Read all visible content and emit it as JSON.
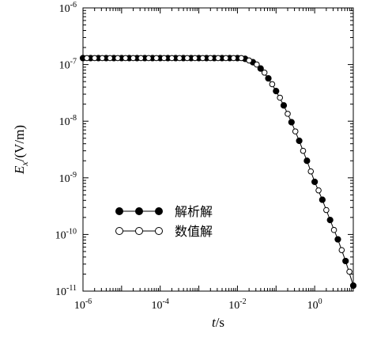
{
  "chart_data": {
    "type": "scatter",
    "x_scale": "log",
    "y_scale": "log",
    "xlim": [
      1e-06,
      10
    ],
    "ylim": [
      1e-11,
      1e-06
    ],
    "x_ticks": [
      {
        "value": 1e-06,
        "base": "10",
        "exp": "-6"
      },
      {
        "value": 0.0001,
        "base": "10",
        "exp": "-4"
      },
      {
        "value": 0.01,
        "base": "10",
        "exp": "-2"
      },
      {
        "value": 1,
        "base": "10",
        "exp": "0"
      }
    ],
    "y_ticks": [
      {
        "value": 1e-06,
        "base": "10",
        "exp": "-6"
      },
      {
        "value": 1e-07,
        "base": "10",
        "exp": "-7"
      },
      {
        "value": 1e-08,
        "base": "10",
        "exp": "-8"
      },
      {
        "value": 1e-09,
        "base": "10",
        "exp": "-9"
      },
      {
        "value": 1e-10,
        "base": "10",
        "exp": "-10"
      },
      {
        "value": 1e-11,
        "base": "10",
        "exp": "-11"
      }
    ],
    "xlabel": {
      "italic": "t",
      "rest": "/s"
    },
    "ylabel": {
      "italic": "E",
      "sub": "x",
      "rest": "/(V/m)"
    },
    "legend_position": "center-left",
    "series": [
      {
        "name": "解析解",
        "marker": "filled-circle",
        "color": "#000000",
        "x": [
          1e-06,
          1.58e-06,
          2.51e-06,
          3.98e-06,
          6.31e-06,
          1e-05,
          1.58e-05,
          2.51e-05,
          3.98e-05,
          6.31e-05,
          0.0001,
          0.000158,
          0.000251,
          0.000398,
          0.000631,
          0.001,
          0.00158,
          0.00251,
          0.00398,
          0.00631,
          0.01,
          0.0158,
          0.0251,
          0.0398,
          0.0631,
          0.1,
          0.158,
          0.251,
          0.398,
          0.631,
          1,
          1.58,
          2.51,
          3.98,
          6.31,
          10
        ],
        "y": [
          1.3e-07,
          1.3e-07,
          1.3e-07,
          1.3e-07,
          1.3e-07,
          1.3e-07,
          1.3e-07,
          1.3e-07,
          1.3e-07,
          1.3e-07,
          1.3e-07,
          1.3e-07,
          1.3e-07,
          1.3e-07,
          1.3e-07,
          1.3e-07,
          1.3e-07,
          1.3e-07,
          1.3e-07,
          1.3e-07,
          1.3e-07,
          1.26e-07,
          1.1e-07,
          8.5e-08,
          5.7e-08,
          3.4e-08,
          1.9e-08,
          9.6e-09,
          4.5e-09,
          2e-09,
          8.5e-10,
          4.1e-10,
          1.8e-10,
          8.2e-11,
          3.4e-11,
          1.25e-11
        ]
      },
      {
        "name": "数值解",
        "marker": "open-circle",
        "color": "#000000",
        "x": [
          1.26e-06,
          2e-06,
          3.16e-06,
          5.01e-06,
          7.94e-06,
          1.26e-05,
          2e-05,
          3.16e-05,
          5.01e-05,
          7.94e-05,
          0.000126,
          0.0002,
          0.000316,
          0.000501,
          0.000794,
          0.00126,
          0.002,
          0.00316,
          0.00501,
          0.00794,
          0.0126,
          0.02,
          0.0316,
          0.0501,
          0.0794,
          0.126,
          0.2,
          0.316,
          0.501,
          0.794,
          1.26,
          2,
          3.16,
          5.01,
          7.94
        ],
        "y": [
          1.3e-07,
          1.3e-07,
          1.3e-07,
          1.3e-07,
          1.3e-07,
          1.3e-07,
          1.3e-07,
          1.3e-07,
          1.3e-07,
          1.3e-07,
          1.3e-07,
          1.3e-07,
          1.3e-07,
          1.3e-07,
          1.3e-07,
          1.3e-07,
          1.3e-07,
          1.3e-07,
          1.3e-07,
          1.3e-07,
          1.3e-07,
          1.18e-07,
          1e-07,
          7.2e-08,
          4.5e-08,
          2.6e-08,
          1.35e-08,
          6.6e-09,
          3e-09,
          1.3e-09,
          6e-10,
          2.7e-10,
          1.2e-10,
          5.3e-11,
          2.2e-11
        ]
      }
    ]
  }
}
